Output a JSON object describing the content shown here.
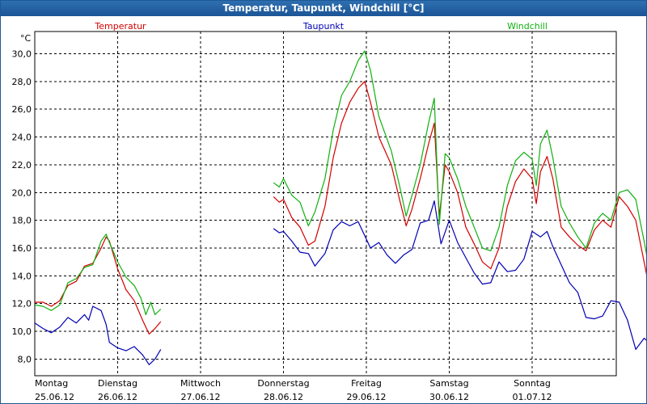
{
  "window": {
    "title": "Temperatur, Taupunkt, Windchill [°C]"
  },
  "colors": {
    "temperatur": "#d40000",
    "taupunkt": "#0000b4",
    "windchill": "#10b010",
    "grid": "#000000",
    "background": "#ffffff",
    "titlebar": "#1b5596"
  },
  "chart_data": {
    "type": "line",
    "title": "Temperatur, Taupunkt, Windchill [°C]",
    "ylabel": "°C",
    "xlabel": "",
    "ylim": [
      6.8,
      31.6
    ],
    "xlim": [
      0,
      7.07
    ],
    "grid": true,
    "y_ticks": [
      {
        "value": 8,
        "label": "8,0"
      },
      {
        "value": 10,
        "label": "10,0"
      },
      {
        "value": 12,
        "label": "12,0"
      },
      {
        "value": 14,
        "label": "14,0"
      },
      {
        "value": 16,
        "label": "16,0"
      },
      {
        "value": 18,
        "label": "18,0"
      },
      {
        "value": 20,
        "label": "20,0"
      },
      {
        "value": 22,
        "label": "22,0"
      },
      {
        "value": 24,
        "label": "24,0"
      },
      {
        "value": 26,
        "label": "26,0"
      },
      {
        "value": 28,
        "label": "28,0"
      },
      {
        "value": 30,
        "label": "30,0"
      }
    ],
    "x_ticks": [
      {
        "value": 0,
        "day": "Montag",
        "date": "25.06.12"
      },
      {
        "value": 1,
        "day": "Dienstag",
        "date": "26.06.12"
      },
      {
        "value": 2,
        "day": "Mittwoch",
        "date": "27.06.12"
      },
      {
        "value": 3,
        "day": "Donnerstag",
        "date": "28.06.12"
      },
      {
        "value": 4,
        "day": "Freitag",
        "date": "29.06.12"
      },
      {
        "value": 5,
        "day": "Samstag",
        "date": "30.06.12"
      },
      {
        "value": 6,
        "day": "Sonntag",
        "date": "01.07.12"
      }
    ],
    "series": [
      {
        "name": "Temperatur",
        "points": [
          [
            0,
            12.1
          ],
          [
            0.1,
            12.1
          ],
          [
            0.2,
            11.8
          ],
          [
            0.3,
            12.2
          ],
          [
            0.4,
            13.3
          ],
          [
            0.5,
            13.6
          ],
          [
            0.6,
            14.7
          ],
          [
            0.7,
            14.9
          ],
          [
            0.8,
            16.0
          ],
          [
            0.86,
            16.8
          ],
          [
            0.9,
            16.5
          ],
          [
            1.0,
            14.5
          ],
          [
            1.1,
            13.0
          ],
          [
            1.2,
            12.2
          ],
          [
            1.3,
            10.8
          ],
          [
            1.38,
            9.8
          ],
          [
            1.45,
            10.2
          ],
          [
            1.52,
            10.7
          ],
          [
            2.88,
            19.7
          ],
          [
            2.95,
            19.3
          ],
          [
            3.0,
            19.5
          ],
          [
            3.1,
            18.2
          ],
          [
            3.2,
            17.5
          ],
          [
            3.3,
            16.2
          ],
          [
            3.38,
            16.5
          ],
          [
            3.5,
            19.0
          ],
          [
            3.6,
            22.5
          ],
          [
            3.7,
            25.0
          ],
          [
            3.8,
            26.5
          ],
          [
            3.9,
            27.5
          ],
          [
            3.98,
            28.0
          ],
          [
            4.05,
            26.5
          ],
          [
            4.15,
            24.0
          ],
          [
            4.3,
            22.0
          ],
          [
            4.4,
            19.5
          ],
          [
            4.48,
            17.6
          ],
          [
            4.55,
            18.8
          ],
          [
            4.65,
            21.0
          ],
          [
            4.75,
            23.5
          ],
          [
            4.82,
            25.0
          ],
          [
            4.88,
            18.3
          ],
          [
            4.95,
            22.0
          ],
          [
            5.0,
            21.5
          ],
          [
            5.1,
            20.0
          ],
          [
            5.2,
            17.5
          ],
          [
            5.3,
            16.3
          ],
          [
            5.4,
            15.0
          ],
          [
            5.5,
            14.5
          ],
          [
            5.6,
            16.0
          ],
          [
            5.7,
            19.0
          ],
          [
            5.8,
            20.8
          ],
          [
            5.9,
            21.7
          ],
          [
            6.0,
            21.0
          ],
          [
            6.05,
            19.2
          ],
          [
            6.1,
            21.5
          ],
          [
            6.18,
            22.6
          ],
          [
            6.25,
            21.0
          ],
          [
            6.35,
            17.5
          ],
          [
            6.45,
            16.8
          ],
          [
            6.55,
            16.2
          ],
          [
            6.65,
            15.8
          ],
          [
            6.75,
            17.3
          ],
          [
            6.85,
            18.0
          ],
          [
            6.95,
            17.5
          ],
          [
            7.05,
            19.7
          ],
          [
            7.15,
            19.0
          ],
          [
            7.25,
            18.0
          ],
          [
            7.35,
            15.0
          ],
          [
            7.45,
            12.0
          ]
        ]
      },
      {
        "name": "Taupunkt",
        "points": [
          [
            0,
            10.6
          ],
          [
            0.1,
            10.2
          ],
          [
            0.2,
            9.9
          ],
          [
            0.3,
            10.3
          ],
          [
            0.4,
            11.0
          ],
          [
            0.5,
            10.6
          ],
          [
            0.6,
            11.2
          ],
          [
            0.65,
            10.8
          ],
          [
            0.7,
            11.8
          ],
          [
            0.8,
            11.5
          ],
          [
            0.86,
            10.5
          ],
          [
            0.9,
            9.2
          ],
          [
            1.0,
            8.8
          ],
          [
            1.1,
            8.6
          ],
          [
            1.2,
            8.9
          ],
          [
            1.3,
            8.3
          ],
          [
            1.38,
            7.6
          ],
          [
            1.45,
            8.0
          ],
          [
            1.52,
            8.7
          ],
          [
            2.88,
            17.4
          ],
          [
            2.95,
            17.1
          ],
          [
            3.0,
            17.2
          ],
          [
            3.1,
            16.5
          ],
          [
            3.2,
            15.7
          ],
          [
            3.3,
            15.6
          ],
          [
            3.38,
            14.7
          ],
          [
            3.5,
            15.6
          ],
          [
            3.6,
            17.3
          ],
          [
            3.7,
            17.9
          ],
          [
            3.8,
            17.6
          ],
          [
            3.9,
            17.9
          ],
          [
            3.98,
            16.9
          ],
          [
            4.05,
            16.0
          ],
          [
            4.15,
            16.4
          ],
          [
            4.25,
            15.5
          ],
          [
            4.35,
            14.9
          ],
          [
            4.45,
            15.5
          ],
          [
            4.55,
            15.9
          ],
          [
            4.65,
            17.8
          ],
          [
            4.75,
            18.0
          ],
          [
            4.82,
            19.4
          ],
          [
            4.9,
            16.3
          ],
          [
            5.0,
            18.0
          ],
          [
            5.1,
            16.4
          ],
          [
            5.2,
            15.3
          ],
          [
            5.3,
            14.2
          ],
          [
            5.4,
            13.4
          ],
          [
            5.5,
            13.5
          ],
          [
            5.6,
            15.0
          ],
          [
            5.7,
            14.3
          ],
          [
            5.8,
            14.4
          ],
          [
            5.9,
            15.2
          ],
          [
            6.0,
            17.2
          ],
          [
            6.1,
            16.8
          ],
          [
            6.18,
            17.2
          ],
          [
            6.25,
            16.1
          ],
          [
            6.35,
            14.8
          ],
          [
            6.45,
            13.5
          ],
          [
            6.55,
            12.8
          ],
          [
            6.65,
            11.0
          ],
          [
            6.75,
            10.9
          ],
          [
            6.85,
            11.1
          ],
          [
            6.95,
            12.2
          ],
          [
            7.05,
            12.1
          ],
          [
            7.15,
            10.8
          ],
          [
            7.25,
            8.7
          ],
          [
            7.35,
            9.5
          ],
          [
            7.45,
            9.0
          ]
        ]
      },
      {
        "name": "Windchill",
        "points": [
          [
            0,
            11.9
          ],
          [
            0.1,
            11.8
          ],
          [
            0.2,
            11.5
          ],
          [
            0.3,
            11.9
          ],
          [
            0.4,
            13.5
          ],
          [
            0.5,
            13.8
          ],
          [
            0.6,
            14.6
          ],
          [
            0.7,
            14.8
          ],
          [
            0.8,
            16.5
          ],
          [
            0.86,
            17.0
          ],
          [
            0.9,
            16.4
          ],
          [
            1.0,
            15.0
          ],
          [
            1.1,
            13.9
          ],
          [
            1.2,
            13.3
          ],
          [
            1.28,
            12.4
          ],
          [
            1.34,
            11.2
          ],
          [
            1.4,
            12.1
          ],
          [
            1.45,
            11.2
          ],
          [
            1.52,
            11.6
          ],
          [
            2.88,
            20.7
          ],
          [
            2.95,
            20.4
          ],
          [
            3.0,
            21.0
          ],
          [
            3.1,
            19.8
          ],
          [
            3.2,
            19.3
          ],
          [
            3.3,
            17.6
          ],
          [
            3.38,
            18.6
          ],
          [
            3.5,
            21.0
          ],
          [
            3.6,
            24.5
          ],
          [
            3.7,
            27.0
          ],
          [
            3.8,
            28.0
          ],
          [
            3.9,
            29.5
          ],
          [
            3.98,
            30.2
          ],
          [
            4.05,
            28.8
          ],
          [
            4.15,
            25.5
          ],
          [
            4.3,
            23.0
          ],
          [
            4.4,
            20.5
          ],
          [
            4.48,
            18.3
          ],
          [
            4.55,
            19.8
          ],
          [
            4.65,
            22.0
          ],
          [
            4.75,
            25.0
          ],
          [
            4.82,
            26.8
          ],
          [
            4.88,
            17.7
          ],
          [
            4.95,
            22.8
          ],
          [
            5.0,
            22.5
          ],
          [
            5.1,
            21.0
          ],
          [
            5.2,
            19.0
          ],
          [
            5.3,
            17.5
          ],
          [
            5.4,
            16.0
          ],
          [
            5.5,
            15.8
          ],
          [
            5.6,
            17.5
          ],
          [
            5.7,
            20.5
          ],
          [
            5.8,
            22.3
          ],
          [
            5.9,
            22.9
          ],
          [
            6.0,
            22.4
          ],
          [
            6.05,
            20.5
          ],
          [
            6.1,
            23.5
          ],
          [
            6.18,
            24.5
          ],
          [
            6.25,
            22.5
          ],
          [
            6.35,
            19.0
          ],
          [
            6.45,
            17.8
          ],
          [
            6.55,
            16.8
          ],
          [
            6.65,
            16.0
          ],
          [
            6.75,
            17.8
          ],
          [
            6.85,
            18.5
          ],
          [
            6.95,
            18.0
          ],
          [
            7.05,
            20.0
          ],
          [
            7.15,
            20.2
          ],
          [
            7.25,
            19.5
          ],
          [
            7.35,
            16.5
          ],
          [
            7.45,
            13.3
          ]
        ]
      }
    ]
  }
}
